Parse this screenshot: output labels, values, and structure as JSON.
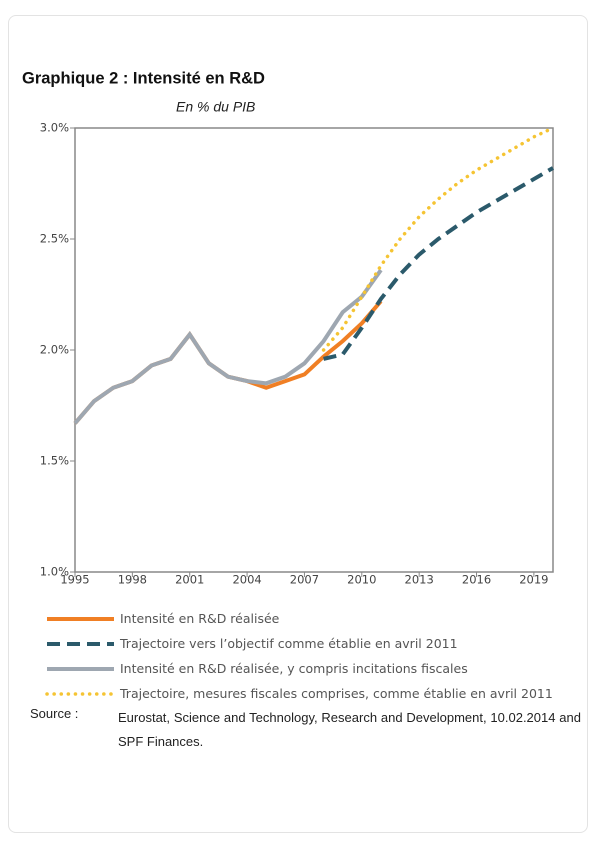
{
  "chart_data": {
    "type": "line",
    "title": "Graphique 2 :  Intensité en R&D",
    "subtitle": "En % du PIB",
    "xlim": [
      1995,
      2020
    ],
    "xticks": [
      1995,
      1998,
      2001,
      2004,
      2007,
      2010,
      2013,
      2016,
      2019
    ],
    "ylim": [
      1.0,
      3.0
    ],
    "yticks": [
      {
        "value": 1.0,
        "label": "1.0%"
      },
      {
        "value": 1.5,
        "label": "1.5%"
      },
      {
        "value": 2.0,
        "label": "2.0%"
      },
      {
        "value": 2.5,
        "label": "2.5%"
      },
      {
        "value": 3.0,
        "label": "3.0%"
      }
    ],
    "grid": false,
    "series": [
      {
        "name": "Intensité en R&D réalisée",
        "color": "#f07f24",
        "style": "solid",
        "x": [
          1995,
          1996,
          1997,
          1998,
          1999,
          2000,
          2001,
          2002,
          2003,
          2004,
          2005,
          2006,
          2007,
          2008,
          2009,
          2010,
          2011
        ],
        "values": [
          1.67,
          1.77,
          1.83,
          1.86,
          1.93,
          1.96,
          2.07,
          1.94,
          1.88,
          1.86,
          1.83,
          1.86,
          1.89,
          1.97,
          2.04,
          2.12,
          2.22
        ]
      },
      {
        "name": "Trajectoire vers l’objectif comme établie en avril 2011",
        "color": "#2b5a6b",
        "style": "dashed",
        "x": [
          2008,
          2009,
          2010,
          2011,
          2012,
          2013,
          2014,
          2015,
          2016,
          2017,
          2018,
          2019,
          2020
        ],
        "values": [
          1.96,
          1.98,
          2.1,
          2.23,
          2.34,
          2.43,
          2.5,
          2.56,
          2.62,
          2.67,
          2.72,
          2.77,
          2.82
        ]
      },
      {
        "name": "Intensité en R&D réalisée, y compris incitations fiscales",
        "color": "#9ea7b1",
        "style": "solid",
        "x": [
          1995,
          1996,
          1997,
          1998,
          1999,
          2000,
          2001,
          2002,
          2003,
          2004,
          2005,
          2006,
          2007,
          2008,
          2009,
          2010,
          2011
        ],
        "values": [
          1.67,
          1.77,
          1.83,
          1.86,
          1.93,
          1.96,
          2.07,
          1.94,
          1.88,
          1.86,
          1.85,
          1.88,
          1.94,
          2.04,
          2.17,
          2.24,
          2.36
        ]
      },
      {
        "name": "Trajectoire, mesures fiscales comprises, comme établie en avril 2011",
        "color": "#f5c433",
        "style": "dotted",
        "x": [
          2008,
          2009,
          2010,
          2011,
          2012,
          2013,
          2014,
          2015,
          2016,
          2017,
          2018,
          2019,
          2020
        ],
        "values": [
          2.0,
          2.1,
          2.24,
          2.38,
          2.5,
          2.6,
          2.68,
          2.75,
          2.81,
          2.86,
          2.91,
          2.96,
          3.0
        ]
      }
    ]
  },
  "source": {
    "label": "Source :",
    "text": "Eurostat, Science and Technology, Research and Development, 10.02.2014 and SPF Finances."
  }
}
